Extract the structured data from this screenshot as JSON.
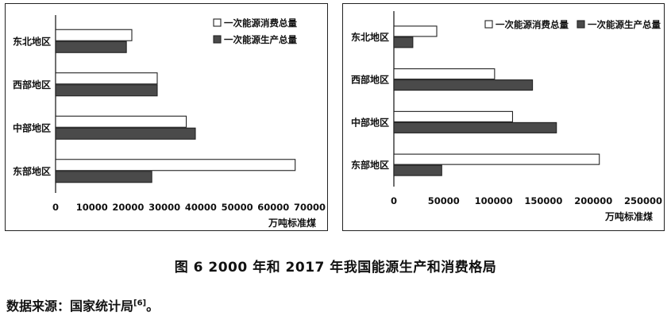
{
  "chart_data": [
    {
      "type": "bar",
      "orientation": "horizontal",
      "categories": [
        "东北地区",
        "西部地区",
        "中部地区",
        "东部地区"
      ],
      "series": [
        {
          "name": "一次能源消费总量",
          "values": [
            21000,
            28000,
            36000,
            66000
          ],
          "color": "#ffffff"
        },
        {
          "name": "一次能源生产总量",
          "values": [
            19500,
            28000,
            38500,
            26500
          ],
          "color": "#4a4a4a"
        }
      ],
      "xlim": [
        0,
        70000
      ],
      "xticks": [
        "0",
        "10000",
        "20000",
        "30000",
        "40000",
        "50000",
        "60000",
        "70000"
      ],
      "xlabel": "万吨标准煤",
      "legend": "top-right"
    },
    {
      "type": "bar",
      "orientation": "horizontal",
      "categories": [
        "东北地区",
        "西部地区",
        "中部地区",
        "东部地区"
      ],
      "series": [
        {
          "name": "一次能源消费总量",
          "values": [
            43000,
            101000,
            119000,
            206000
          ],
          "color": "#ffffff"
        },
        {
          "name": "一次能源生产总量",
          "values": [
            19000,
            139000,
            163000,
            48000
          ],
          "color": "#4a4a4a"
        }
      ],
      "xlim": [
        0,
        250000
      ],
      "xticks": [
        "0",
        "50000",
        "100000",
        "150000",
        "200000",
        "250000"
      ],
      "xlabel": "万吨标准煤",
      "legend": "top-right"
    }
  ],
  "caption": "图 6  2000 年和 2017 年我国能源生产和消费格局",
  "source": {
    "text": "数据来源：国家统计局",
    "ref": "[6]",
    "end": "。"
  }
}
